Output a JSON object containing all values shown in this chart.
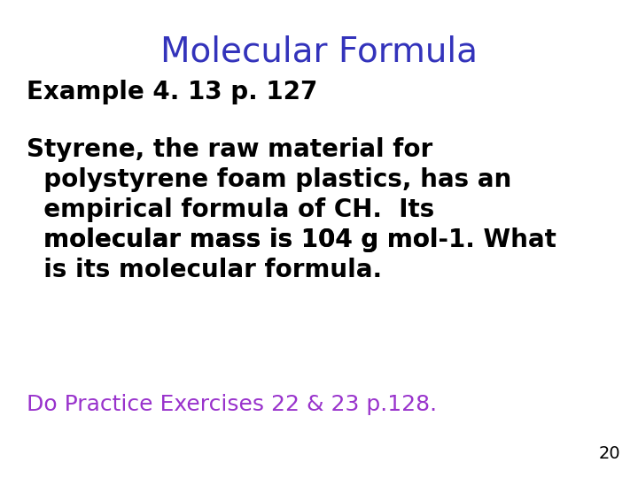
{
  "title": "Molecular Formula",
  "title_color": "#3333bb",
  "title_fontsize": 28,
  "title_bold": false,
  "example_label": "Example 4. 13 p. 127",
  "example_fontsize": 20,
  "example_bold": true,
  "example_color": "#000000",
  "body_line1": "Styrene, the raw material for",
  "body_line2": "  polystyrene foam plastics, has an",
  "body_line3": "  empirical formula of CH.  Its",
  "body_line4_pre": "  molecular mass is 104 g mol",
  "body_line4_sup": "-1",
  "body_line4_post": ". What",
  "body_line5": "  is its molecular formula.",
  "body_fontsize": 20,
  "body_bold": true,
  "body_color": "#000000",
  "practice_text": "Do Practice Exercises 22 & 23 p.128.",
  "practice_fontsize": 18,
  "practice_bold": false,
  "practice_color": "#9933cc",
  "page_number": "20",
  "page_fontsize": 14,
  "page_color": "#000000",
  "background_color": "#ffffff"
}
